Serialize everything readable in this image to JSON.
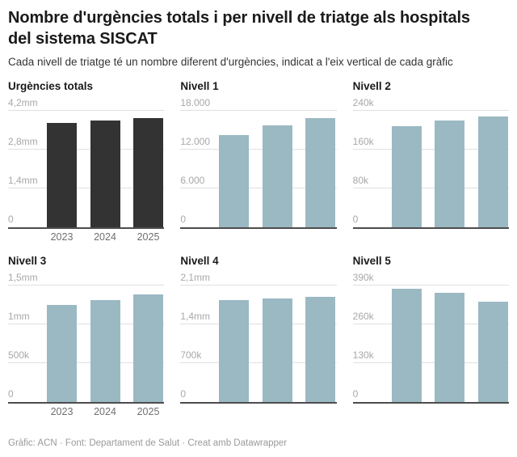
{
  "header": {
    "title_line1": "Nombre d'urgències totals i per nivell de triatge als hospitals",
    "title_line2": "del sistema SISCAT",
    "subtitle": "Cada nivell de triatge té un nombre diferent d'urgències, indicat a l'eix vertical de cada gràfic"
  },
  "footer": {
    "text": "Gràfic: ACN · Font: Departament de Salut · Creat amb Datawrapper"
  },
  "colors": {
    "dark_bar": "#333333",
    "light_bar": "#9bb9c3",
    "gridline": "#e0e0e0",
    "axis_line": "#4d4d4d",
    "tick_label": "#a8a8a8",
    "x_label": "#6f6f6f"
  },
  "chart_data": {
    "type": "bar",
    "layout": "small multiples, 2 rows x 3 columns, grid on, no legend",
    "categories": [
      "2023",
      "2024",
      "2025"
    ],
    "charts": [
      {
        "title": "Urgències totals",
        "ylim": [
          0,
          4200000
        ],
        "ymax": 4200000,
        "tick_labels": [
          "0",
          "1,4mm",
          "2,8mm",
          "4,2mm"
        ],
        "values": [
          3760000,
          3850000,
          3930000
        ],
        "bar_color": "#333333",
        "show_x_labels": true
      },
      {
        "title": "Nivell 1",
        "ylim": [
          0,
          18000
        ],
        "ymax": 18000,
        "tick_labels": [
          "0",
          "6.000",
          "12.000",
          "18.000"
        ],
        "values": [
          14200,
          15700,
          16900
        ],
        "bar_color": "#9bb9c3",
        "show_x_labels": false
      },
      {
        "title": "Nivell 2",
        "ylim": [
          0,
          240000
        ],
        "ymax": 240000,
        "tick_labels": [
          "0",
          "80k",
          "160k",
          "240k"
        ],
        "values": [
          209000,
          220000,
          229000
        ],
        "bar_color": "#9bb9c3",
        "show_x_labels": false
      },
      {
        "title": "Nivell 3",
        "ylim": [
          0,
          1500000
        ],
        "ymax": 1500000,
        "tick_labels": [
          "0",
          "500k",
          "1mm",
          "1,5mm"
        ],
        "values": [
          1245000,
          1315000,
          1385000
        ],
        "bar_color": "#9bb9c3",
        "show_x_labels": true
      },
      {
        "title": "Nivell 4",
        "ylim": [
          0,
          2100000
        ],
        "ymax": 2100000,
        "tick_labels": [
          "0",
          "700k",
          "1,4mm",
          "2,1mm"
        ],
        "values": [
          1845000,
          1870000,
          1900000
        ],
        "bar_color": "#9bb9c3",
        "show_x_labels": false
      },
      {
        "title": "Nivell 5",
        "ylim": [
          0,
          390000
        ],
        "ymax": 390000,
        "tick_labels": [
          "0",
          "130k",
          "260k",
          "390k"
        ],
        "values": [
          378000,
          367000,
          335000
        ],
        "bar_color": "#9bb9c3",
        "show_x_labels": false
      }
    ]
  }
}
